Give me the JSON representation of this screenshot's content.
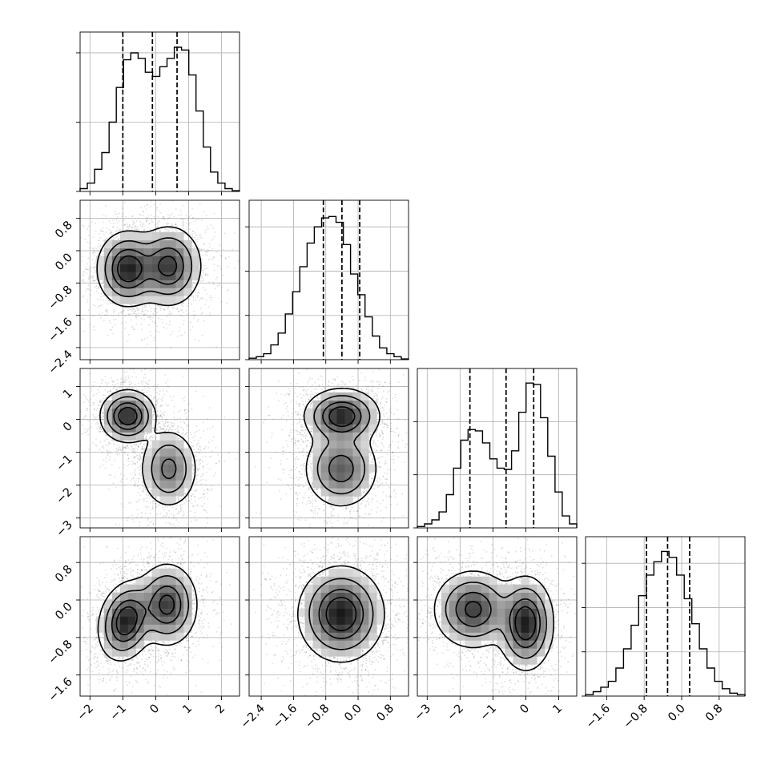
{
  "colors": {
    "background": "#ffffff",
    "ink": "#000000",
    "grid": "#b0b0b0"
  },
  "chart_data": {
    "type": "corner",
    "n_params": 4,
    "grid": true,
    "params": [
      {
        "range": [
          -2.3,
          2.55
        ],
        "ticks": [
          -2,
          -1,
          0,
          1,
          2
        ],
        "tick_labels": [
          "−2",
          "−1",
          "0",
          "1",
          "2"
        ],
        "quantiles": [
          -1.0,
          -0.1,
          0.65
        ]
      },
      {
        "range": [
          -2.7,
          1.25
        ],
        "ticks": [
          -2.4,
          -1.6,
          -0.8,
          0.0,
          0.8
        ],
        "tick_labels": [
          "−2.4",
          "−1.6",
          "−0.8",
          "0.0",
          "0.8"
        ],
        "quantiles": [
          -0.86,
          -0.4,
          0.04
        ]
      },
      {
        "range": [
          -3.3,
          1.55
        ],
        "ticks": [
          -3,
          -2,
          -1,
          0,
          1
        ],
        "tick_labels": [
          "−3",
          "−2",
          "−1",
          "0",
          "1"
        ],
        "quantiles": [
          -1.7,
          -0.6,
          0.24
        ]
      },
      {
        "range": [
          -2.05,
          1.35
        ],
        "ticks": [
          -1.6,
          -0.8,
          0.0,
          0.8
        ],
        "tick_labels": [
          "−1.6",
          "−0.8",
          "0.0",
          "0.8"
        ],
        "quantiles": [
          -0.75,
          -0.3,
          0.17
        ]
      }
    ],
    "histograms": [
      {
        "counts": [
          0.2,
          0.6,
          1.6,
          2.8,
          5.0,
          7.5,
          9.5,
          10.0,
          9.6,
          8.6,
          8.3,
          9.0,
          9.6,
          10.4,
          10.2,
          8.4,
          5.8,
          3.2,
          1.4,
          0.6,
          0.2,
          0.05
        ],
        "ymax": 11.5,
        "yticks": [
          0,
          5,
          10
        ]
      },
      {
        "counts": [
          0.1,
          0.2,
          0.4,
          1.0,
          1.8,
          3.1,
          4.6,
          6.3,
          7.9,
          9.0,
          9.6,
          9.7,
          9.3,
          7.8,
          5.8,
          4.4,
          2.9,
          1.6,
          0.8,
          0.4,
          0.2,
          0.05
        ],
        "ymax": 10.8,
        "yticks": [
          0,
          3,
          6,
          9
        ]
      },
      {
        "counts": [
          0.1,
          0.3,
          0.6,
          1.2,
          2.5,
          4.5,
          6.6,
          7.4,
          7.3,
          6.4,
          5.2,
          4.5,
          4.4,
          5.8,
          8.7,
          10.9,
          10.8,
          8.3,
          5.4,
          2.7,
          0.9,
          0.3
        ],
        "ymax": 12.0,
        "yticks": [
          0,
          4,
          8
        ]
      },
      {
        "counts": [
          0.1,
          0.3,
          0.6,
          1.0,
          1.9,
          3.2,
          4.8,
          6.8,
          8.2,
          9.1,
          9.8,
          9.4,
          8.2,
          6.6,
          4.9,
          3.2,
          1.9,
          1.0,
          0.5,
          0.2,
          0.1
        ],
        "ymax": 10.8,
        "yticks": [
          0,
          3,
          6,
          9
        ]
      }
    ],
    "pairs": [
      {
        "x_param": 0,
        "y_param": 1,
        "components": [
          {
            "weight": 0.5,
            "mean": [
              -0.85,
              -0.45
            ],
            "sd": [
              0.42,
              0.42
            ],
            "rho": 0.0
          },
          {
            "weight": 0.5,
            "mean": [
              0.4,
              -0.38
            ],
            "sd": [
              0.45,
              0.45
            ],
            "rho": 0.0
          }
        ]
      },
      {
        "x_param": 0,
        "y_param": 2,
        "components": [
          {
            "weight": 0.5,
            "mean": [
              -0.85,
              0.1
            ],
            "sd": [
              0.38,
              0.36
            ],
            "rho": 0.0
          },
          {
            "weight": 0.5,
            "mean": [
              0.4,
              -1.5
            ],
            "sd": [
              0.4,
              0.55
            ],
            "rho": 0.0
          }
        ]
      },
      {
        "x_param": 1,
        "y_param": 2,
        "components": [
          {
            "weight": 0.5,
            "mean": [
              -0.4,
              0.1
            ],
            "sd": [
              0.42,
              0.38
            ],
            "rho": 0.0
          },
          {
            "weight": 0.5,
            "mean": [
              -0.42,
              -1.5
            ],
            "sd": [
              0.42,
              0.55
            ],
            "rho": 0.0
          }
        ]
      },
      {
        "x_param": 0,
        "y_param": 3,
        "components": [
          {
            "weight": 0.5,
            "mean": [
              -0.9,
              -0.45
            ],
            "sd": [
              0.38,
              0.38
            ],
            "rho": 0.2
          },
          {
            "weight": 0.5,
            "mean": [
              0.35,
              -0.1
            ],
            "sd": [
              0.42,
              0.4
            ],
            "rho": 0.0
          }
        ]
      },
      {
        "x_param": 1,
        "y_param": 3,
        "components": [
          {
            "weight": 1.0,
            "mean": [
              -0.42,
              -0.3
            ],
            "sd": [
              0.48,
              0.46
            ],
            "rho": 0.0
          }
        ]
      },
      {
        "x_param": 2,
        "y_param": 3,
        "components": [
          {
            "weight": 0.5,
            "mean": [
              -1.6,
              -0.2
            ],
            "sd": [
              0.55,
              0.38
            ],
            "rho": 0.0
          },
          {
            "weight": 0.5,
            "mean": [
              0.0,
              -0.5
            ],
            "sd": [
              0.38,
              0.45
            ],
            "rho": 0.0
          }
        ]
      }
    ]
  }
}
